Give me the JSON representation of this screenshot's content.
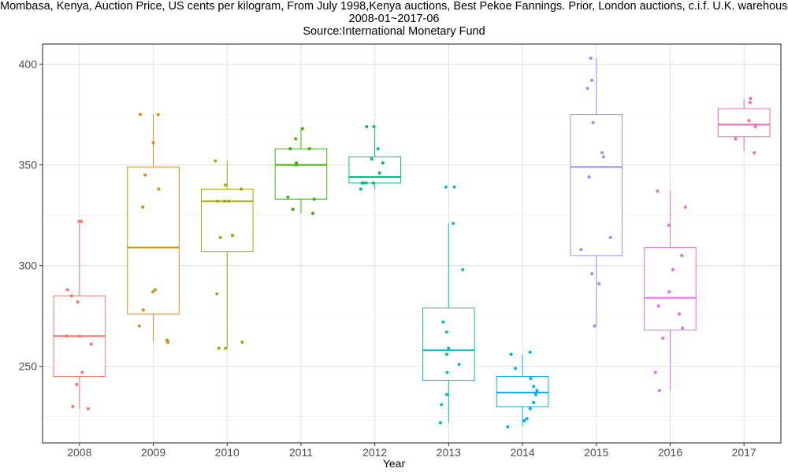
{
  "title": {
    "line1": "Mombasa, Kenya, Auction Price, US cents per kilogram, From July 1998,Kenya auctions, Best Pekoe Fannings. Prior, London auctions, c.i.f. U.K. warehouses",
    "line2": "2008-01~2017-06",
    "line3": "Source:International Monetary Fund"
  },
  "chart_data": {
    "type": "boxplot",
    "xlabel": "Year",
    "ylabel": "",
    "ylim": [
      212,
      410
    ],
    "yticks": [
      250,
      300,
      350,
      400
    ],
    "grid": true,
    "legend": "none",
    "series": [
      {
        "category": "2008",
        "color": "#F8766D",
        "stats": {
          "min": 229,
          "q1": 245,
          "median": 265,
          "q3": 285,
          "max": 322
        },
        "points": [
          322,
          322,
          288,
          285,
          282,
          265,
          265,
          261,
          247,
          241,
          230,
          229
        ]
      },
      {
        "category": "2009",
        "color": "#D89000",
        "stats": {
          "min": 262,
          "q1": 276,
          "median": 309,
          "q3": 349,
          "max": 375
        },
        "points": [
          375,
          375,
          361,
          345,
          338,
          329,
          288,
          287,
          278,
          270,
          263,
          262
        ]
      },
      {
        "category": "2010",
        "color": "#A3A500",
        "stats": {
          "min": 259,
          "q1": 307,
          "median": 332,
          "q3": 338,
          "max": 352
        },
        "points": [
          352,
          340,
          338,
          332,
          332,
          332,
          315,
          314,
          286,
          262,
          259,
          259
        ]
      },
      {
        "category": "2011",
        "color": "#39B600",
        "stats": {
          "min": 326,
          "q1": 333,
          "median": 350,
          "q3": 358,
          "max": 368
        },
        "points": [
          368,
          363,
          358,
          358,
          351,
          350,
          334,
          333,
          328,
          326
        ]
      },
      {
        "category": "2012",
        "color": "#00BF7D",
        "stats": {
          "min": 338,
          "q1": 341,
          "median": 344,
          "q3": 354,
          "max": 369
        },
        "points": [
          369,
          369,
          358,
          353,
          351,
          346,
          341,
          341,
          341,
          341,
          338
        ]
      },
      {
        "category": "2013",
        "color": "#00BFC4",
        "stats": {
          "min": 222,
          "q1": 243,
          "median": 258,
          "q3": 279,
          "max": 321
        },
        "points": [
          339,
          339,
          321,
          298,
          272,
          267,
          259,
          256,
          251,
          247,
          236,
          231,
          222
        ]
      },
      {
        "category": "2014",
        "color": "#00B0F6",
        "stats": {
          "min": 220,
          "q1": 230,
          "median": 237,
          "q3": 245,
          "max": 256
        },
        "points": [
          257,
          256,
          249,
          244,
          240,
          238,
          236,
          232,
          229,
          224,
          223,
          220
        ]
      },
      {
        "category": "2015",
        "color": "#9590FF",
        "stats": {
          "min": 270,
          "q1": 305,
          "median": 349,
          "q3": 375,
          "max": 403
        },
        "points": [
          403,
          392,
          388,
          371,
          356,
          354,
          344,
          314,
          308,
          296,
          291,
          270
        ]
      },
      {
        "category": "2016",
        "color": "#E76BF3",
        "stats": {
          "min": 238,
          "q1": 268,
          "median": 284,
          "q3": 309,
          "max": 337
        },
        "points": [
          337,
          329,
          320,
          305,
          298,
          287,
          280,
          276,
          269,
          264,
          247,
          238
        ]
      },
      {
        "category": "2017",
        "color": "#FF62BC",
        "stats": {
          "min": 357,
          "q1": 364,
          "median": 370,
          "q3": 378,
          "max": 383
        },
        "points": [
          383,
          381,
          372,
          369,
          363,
          356
        ]
      }
    ]
  }
}
